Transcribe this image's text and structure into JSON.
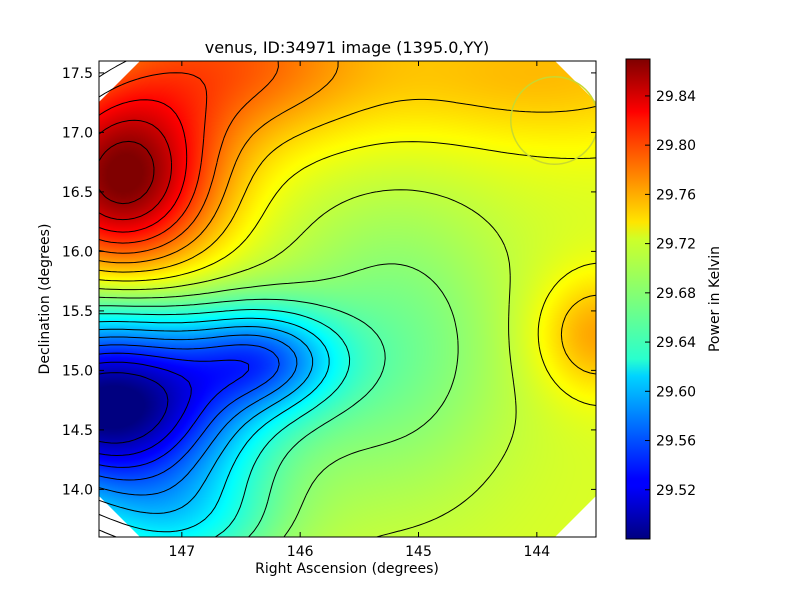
{
  "chart_data": {
    "type": "heatmap",
    "title": "venus, ID:34971 image (1395.0,YY)",
    "xlabel": "Right Ascension (degrees)",
    "ylabel": "Declination (degrees)",
    "xlim": [
      147.7,
      143.5
    ],
    "ylim": [
      13.6,
      17.6
    ],
    "x_ticks": [
      {
        "value": 147,
        "label": "147"
      },
      {
        "value": 146,
        "label": "146"
      },
      {
        "value": 145,
        "label": "145"
      },
      {
        "value": 144,
        "label": "144"
      }
    ],
    "y_ticks": [
      {
        "value": 14.0,
        "label": "14.0"
      },
      {
        "value": 14.5,
        "label": "14.5"
      },
      {
        "value": 15.0,
        "label": "15.0"
      },
      {
        "value": 15.5,
        "label": "15.5"
      },
      {
        "value": 16.0,
        "label": "16.0"
      },
      {
        "value": 16.5,
        "label": "16.5"
      },
      {
        "value": 17.0,
        "label": "17.0"
      },
      {
        "value": 17.5,
        "label": "17.5"
      }
    ],
    "colorbar": {
      "label": "Power in Kelvin",
      "range": [
        29.48,
        29.87
      ],
      "colormap": "jet",
      "ticks": [
        {
          "value": 29.52,
          "label": "29.52"
        },
        {
          "value": 29.56,
          "label": "29.56"
        },
        {
          "value": 29.6,
          "label": "29.60"
        },
        {
          "value": 29.64,
          "label": "29.64"
        },
        {
          "value": 29.68,
          "label": "29.68"
        },
        {
          "value": 29.72,
          "label": "29.72"
        },
        {
          "value": 29.76,
          "label": "29.76"
        },
        {
          "value": 29.8,
          "label": "29.80"
        },
        {
          "value": 29.84,
          "label": "29.84"
        }
      ]
    },
    "field_components": [
      {
        "kind": "base",
        "value": 29.71
      },
      {
        "kind": "gaussian",
        "ra": 147.5,
        "dec": 16.6,
        "amplitude": 0.16,
        "sigma_ra": 0.55,
        "sigma_dec": 0.55
      },
      {
        "kind": "gaussian",
        "ra": 146.6,
        "dec": 17.6,
        "amplitude": 0.07,
        "sigma_ra": 0.8,
        "sigma_dec": 0.5
      },
      {
        "kind": "gaussian",
        "ra": 144.0,
        "dec": 17.5,
        "amplitude": 0.04,
        "sigma_ra": 1.2,
        "sigma_dec": 0.45
      },
      {
        "kind": "gaussian",
        "ra": 143.5,
        "dec": 15.3,
        "amplitude": 0.05,
        "sigma_ra": 0.35,
        "sigma_dec": 0.35
      },
      {
        "kind": "gaussian",
        "ra": 147.6,
        "dec": 14.7,
        "amplitude": -0.24,
        "sigma_ra": 0.8,
        "sigma_dec": 0.55
      },
      {
        "kind": "gaussian",
        "ra": 146.3,
        "dec": 15.1,
        "amplitude": -0.1,
        "sigma_ra": 0.45,
        "sigma_dec": 0.3
      },
      {
        "kind": "gaussian",
        "ra": 147.0,
        "dec": 13.7,
        "amplitude": -0.06,
        "sigma_ra": 0.6,
        "sigma_dec": 0.35
      },
      {
        "kind": "gaussian",
        "ra": 145.2,
        "dec": 15.2,
        "amplitude": -0.04,
        "sigma_ra": 0.7,
        "sigma_dec": 0.9
      }
    ],
    "contour_levels": [
      29.5,
      29.52,
      29.54,
      29.56,
      29.58,
      29.6,
      29.62,
      29.64,
      29.66,
      29.68,
      29.7,
      29.72,
      29.74,
      29.76,
      29.78,
      29.8,
      29.82,
      29.84,
      29.86
    ],
    "beam_marker": {
      "ra": 143.85,
      "dec": 17.1,
      "radius_deg": 0.37,
      "color": "#c8d830"
    },
    "grid": false,
    "legend": "none"
  }
}
